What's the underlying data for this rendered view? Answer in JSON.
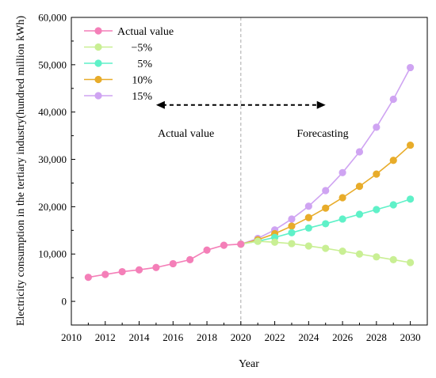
{
  "chart_data": {
    "type": "line",
    "xlabel": "Year",
    "ylabel": "Electricity consumption in the tertiary industry(hundred million kWh)",
    "xlim": [
      2010,
      2031
    ],
    "ylim": [
      -5000,
      60000
    ],
    "xticks": [
      2010,
      2012,
      2014,
      2016,
      2018,
      2020,
      2022,
      2024,
      2026,
      2028,
      2030
    ],
    "xtick_labels": [
      "2010",
      "2012",
      "2014",
      "2016",
      "2018",
      "2020",
      "2022",
      "2024",
      "2026",
      "2028",
      "2030"
    ],
    "yticks": [
      0,
      10000,
      20000,
      30000,
      40000,
      50000,
      60000
    ],
    "ytick_labels": [
      "0",
      "10,000",
      "20,000",
      "30,000",
      "40,000",
      "50,000",
      "60,000"
    ],
    "grid": false,
    "legend_position": "top-left",
    "divider_x": 2020,
    "annotations": [
      {
        "text": "Actual value",
        "x": 2015.1,
        "y": 34800
      },
      {
        "text": "Forecasting",
        "x": 2023.3,
        "y": 34800
      }
    ],
    "arrow": {
      "x_start": 2015,
      "x_end": 2025,
      "y": 41500
    },
    "series": [
      {
        "name": "Actual value",
        "color": "#f47fb8",
        "x": [
          2011,
          2012,
          2013,
          2014,
          2015,
          2016,
          2017,
          2018,
          2019,
          2020
        ],
        "y": [
          5080,
          5690,
          6270,
          6660,
          7160,
          7960,
          8810,
          10830,
          11860,
          12090
        ]
      },
      {
        "name": "−5%",
        "color": "#c9ef94",
        "x": [
          2020,
          2021,
          2022,
          2023,
          2024,
          2025,
          2026,
          2027,
          2028,
          2029,
          2030
        ],
        "y": [
          12090,
          12700,
          12500,
          12200,
          11700,
          11200,
          10600,
          10000,
          9400,
          8800,
          8200
        ]
      },
      {
        "name": "5%",
        "color": "#5ff1c8",
        "x": [
          2020,
          2021,
          2022,
          2023,
          2024,
          2025,
          2026,
          2027,
          2028,
          2029,
          2030
        ],
        "y": [
          12090,
          12700,
          13500,
          14500,
          15500,
          16400,
          17400,
          18400,
          19400,
          20400,
          21600
        ]
      },
      {
        "name": "10%",
        "color": "#e8ac2a",
        "x": [
          2020,
          2021,
          2022,
          2023,
          2024,
          2025,
          2026,
          2027,
          2028,
          2029,
          2030
        ],
        "y": [
          12090,
          13000,
          14300,
          15900,
          17700,
          19700,
          21900,
          24300,
          26900,
          29800,
          33000
        ]
      },
      {
        "name": "15%",
        "color": "#cfa4f2",
        "x": [
          2020,
          2021,
          2022,
          2023,
          2024,
          2025,
          2026,
          2027,
          2028,
          2029,
          2030
        ],
        "y": [
          12090,
          13300,
          15100,
          17400,
          20100,
          23400,
          27200,
          31600,
          36800,
          42700,
          49400
        ]
      }
    ]
  }
}
